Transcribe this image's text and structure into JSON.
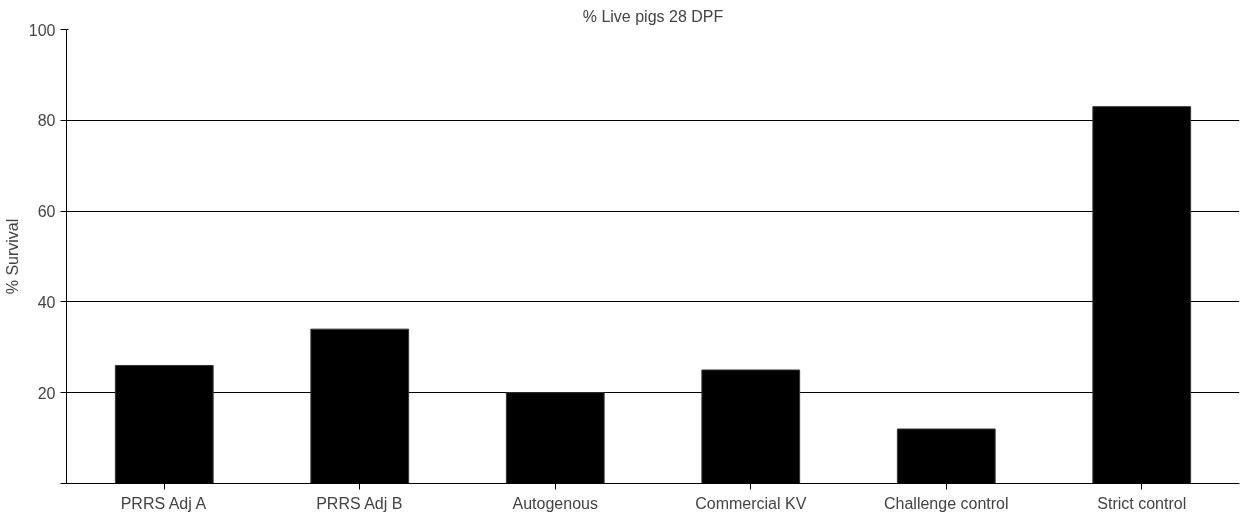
{
  "chart_data": {
    "type": "bar",
    "title": "% Live pigs 28 DPF",
    "ylabel": "% Survival",
    "categories": [
      "PRRS Adj A",
      "PRRS Adj B",
      "Autogenous",
      "Commercial KV",
      "Challenge control",
      "Strict control"
    ],
    "values": [
      26,
      34,
      20,
      25,
      12,
      83
    ],
    "color": "#000000",
    "ylim": [
      0,
      100
    ],
    "yticks": [
      {
        "value": 0,
        "label": null
      },
      20,
      40,
      60,
      80,
      100
    ],
    "grid": "y"
  }
}
